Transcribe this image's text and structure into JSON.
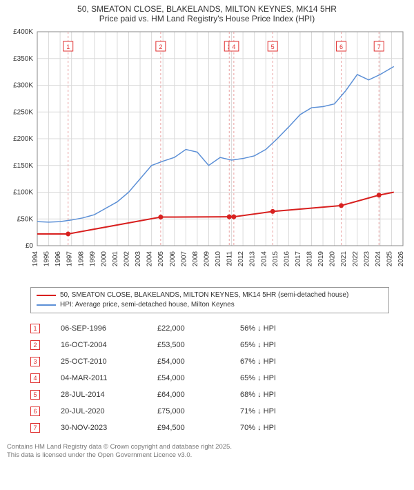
{
  "title": {
    "line1": "50, SMEATON CLOSE, BLAKELANDS, MILTON KEYNES, MK14 5HR",
    "line2": "Price paid vs. HM Land Registry's House Price Index (HPI)",
    "fontsize": 12
  },
  "chart": {
    "type": "line",
    "background_color": "#ffffff",
    "plot_border_color": "#888888",
    "grid_color": "#d9d9d9",
    "ylabel_prefix": "£",
    "ylim": [
      0,
      400000
    ],
    "ytick_step": 50000,
    "yticks": [
      "£0",
      "£50K",
      "£100K",
      "£150K",
      "£200K",
      "£250K",
      "£300K",
      "£350K",
      "£400K"
    ],
    "xlim": [
      1994,
      2026
    ],
    "xticks": [
      1994,
      1995,
      1996,
      1997,
      1998,
      1999,
      2000,
      2001,
      2002,
      2003,
      2004,
      2005,
      2006,
      2007,
      2008,
      2009,
      2010,
      2011,
      2012,
      2013,
      2014,
      2015,
      2016,
      2017,
      2018,
      2019,
      2020,
      2021,
      2022,
      2023,
      2024,
      2025,
      2026
    ],
    "tick_fontsize": 10,
    "series": {
      "price_paid": {
        "color": "#d8201f",
        "line_width": 2,
        "data": [
          [
            1994,
            22000
          ],
          [
            1996.7,
            22000
          ],
          [
            2004.8,
            53500
          ],
          [
            2010.8,
            54000
          ],
          [
            2011.2,
            54000
          ],
          [
            2014.6,
            64000
          ],
          [
            2020.6,
            75000
          ],
          [
            2023.9,
            94500
          ],
          [
            2025.2,
            100000
          ]
        ]
      },
      "hpi": {
        "color": "#5b8fd6",
        "line_width": 1.5,
        "data": [
          [
            1994,
            45000
          ],
          [
            1995,
            44000
          ],
          [
            1996,
            45000
          ],
          [
            1997,
            48000
          ],
          [
            1998,
            52000
          ],
          [
            1999,
            58000
          ],
          [
            2000,
            70000
          ],
          [
            2001,
            82000
          ],
          [
            2002,
            100000
          ],
          [
            2003,
            125000
          ],
          [
            2004,
            150000
          ],
          [
            2005,
            158000
          ],
          [
            2006,
            165000
          ],
          [
            2007,
            180000
          ],
          [
            2008,
            175000
          ],
          [
            2009,
            150000
          ],
          [
            2010,
            165000
          ],
          [
            2011,
            160000
          ],
          [
            2012,
            163000
          ],
          [
            2013,
            168000
          ],
          [
            2014,
            180000
          ],
          [
            2015,
            200000
          ],
          [
            2016,
            222000
          ],
          [
            2017,
            245000
          ],
          [
            2018,
            258000
          ],
          [
            2019,
            260000
          ],
          [
            2020,
            265000
          ],
          [
            2021,
            290000
          ],
          [
            2022,
            320000
          ],
          [
            2023,
            310000
          ],
          [
            2024,
            320000
          ],
          [
            2025.2,
            335000
          ]
        ]
      }
    },
    "markers": [
      {
        "n": "1",
        "year": 1996.7,
        "color": "#e03030"
      },
      {
        "n": "2",
        "year": 2004.8,
        "color": "#e03030"
      },
      {
        "n": "3",
        "year": 2010.8,
        "color": "#e03030"
      },
      {
        "n": "4",
        "year": 2011.2,
        "color": "#e03030"
      },
      {
        "n": "5",
        "year": 2014.6,
        "color": "#e03030"
      },
      {
        "n": "6",
        "year": 2020.6,
        "color": "#e03030"
      },
      {
        "n": "7",
        "year": 2023.9,
        "color": "#e03030"
      }
    ],
    "marker_dashcolor": "#e9a0a0"
  },
  "legend": {
    "items": [
      {
        "color": "#d8201f",
        "label": "50, SMEATON CLOSE, BLAKELANDS, MILTON KEYNES, MK14 5HR (semi-detached house)"
      },
      {
        "color": "#5b8fd6",
        "label": "HPI: Average price, semi-detached house, Milton Keynes"
      }
    ]
  },
  "table": {
    "rows": [
      {
        "n": "1",
        "date": "06-SEP-1996",
        "price": "£22,000",
        "pct": "56% ↓ HPI"
      },
      {
        "n": "2",
        "date": "16-OCT-2004",
        "price": "£53,500",
        "pct": "65% ↓ HPI"
      },
      {
        "n": "3",
        "date": "25-OCT-2010",
        "price": "£54,000",
        "pct": "67% ↓ HPI"
      },
      {
        "n": "4",
        "date": "04-MAR-2011",
        "price": "£54,000",
        "pct": "65% ↓ HPI"
      },
      {
        "n": "5",
        "date": "28-JUL-2014",
        "price": "£64,000",
        "pct": "68% ↓ HPI"
      },
      {
        "n": "6",
        "date": "20-JUL-2020",
        "price": "£75,000",
        "pct": "71% ↓ HPI"
      },
      {
        "n": "7",
        "date": "30-NOV-2023",
        "price": "£94,500",
        "pct": "70% ↓ HPI"
      }
    ],
    "marker_color": "#e03030"
  },
  "footer": {
    "line1": "Contains HM Land Registry data © Crown copyright and database right 2025.",
    "line2": "This data is licensed under the Open Government Licence v3.0."
  }
}
